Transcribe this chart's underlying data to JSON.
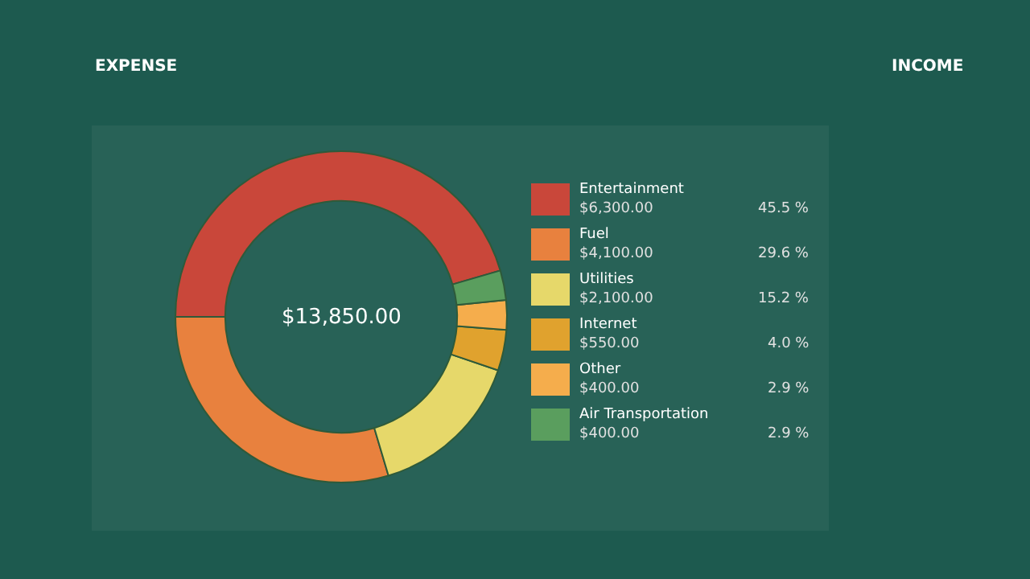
{
  "chart_data": {
    "type": "donut",
    "title": "EXPENSE",
    "categories": [
      "Entertainment",
      "Fuel",
      "Utilities",
      "Internet",
      "Other",
      "Air Transportation"
    ],
    "values": [
      6300,
      4100,
      2100,
      550,
      400,
      400
    ],
    "colors": [
      "#c9473a",
      "#e8813e",
      "#e6d86a",
      "#e0a22e",
      "#f5ad4c",
      "#5a9e5e"
    ],
    "value_labels": [
      "$6,300.00",
      "$4,100.00",
      "$2,100.00",
      "$550.00",
      "$400.00",
      "$400.00"
    ],
    "annotations": [
      "$13,850.00",
      "INCOME",
      "45.5 %",
      "29.6 %",
      "15.2 %",
      "4.0 %",
      "2.9 %",
      "2.9 %"
    ],
    "legend": "right"
  }
}
